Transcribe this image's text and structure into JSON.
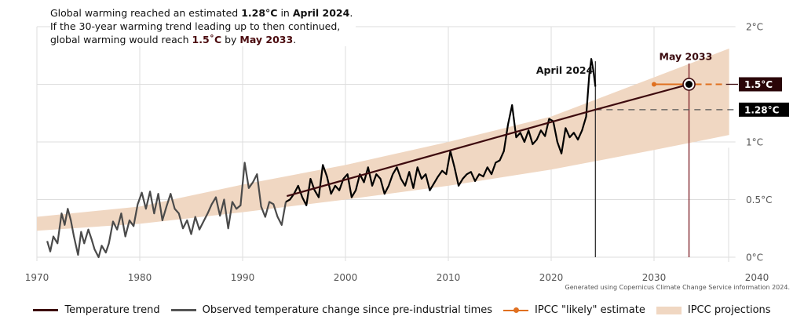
{
  "headline": {
    "line1_pre": "Global warming reached an estimated ",
    "line1_val": "1.28°C",
    "line1_mid": " in ",
    "line1_date": "April 2024",
    "line1_end": ".",
    "line2": "If the 30-year warming trend leading up to then continued,",
    "line3_pre": "global warming would reach ",
    "line3_val": "1.5˚C",
    "line3_mid": " by ",
    "line3_date": "May 2033",
    "line3_end": "."
  },
  "credit": "Generated using Copernicus Climate Change Service information 2024.",
  "colors": {
    "trend": "#3d0a0e",
    "observed_old": "#4a4a4a",
    "observed_recent": "#000000",
    "likely": "#e07020",
    "band": "#f0d7c2",
    "grid": "#dddddd",
    "badge_15": "#2a0508",
    "badge_128": "#000000",
    "target_line": "#7a1a22"
  },
  "chart_data": {
    "type": "line",
    "title": "Global warming reached an estimated 1.28°C in April 2024",
    "xlabel": "",
    "ylabel": "",
    "xlim": [
      1970,
      2040
    ],
    "ylim": [
      0,
      2
    ],
    "x_ticks": [
      {
        "value": 1970,
        "label": "1970"
      },
      {
        "value": 1980,
        "label": "1980"
      },
      {
        "value": 1990,
        "label": "1990"
      },
      {
        "value": 2000,
        "label": "2000"
      },
      {
        "value": 2010,
        "label": "2010"
      },
      {
        "value": 2020,
        "label": "2020"
      },
      {
        "value": 2030,
        "label": "2030"
      },
      {
        "value": 2040,
        "label": "2040"
      }
    ],
    "y_ticks": [
      {
        "value": 0,
        "label": "0°C"
      },
      {
        "value": 0.5,
        "label": "0.5°C"
      },
      {
        "value": 1,
        "label": "1°C"
      },
      {
        "value": 1.5,
        "label": ""
      },
      {
        "value": 2,
        "label": "2°C"
      }
    ],
    "grid": true,
    "legend_position": "bottom",
    "series": [
      {
        "name": "Observed temperature change since pre-industrial times",
        "x": [
          1971.0,
          1971.3,
          1971.6,
          1972.0,
          1972.4,
          1972.7,
          1973.0,
          1973.3,
          1973.6,
          1974.0,
          1974.3,
          1974.6,
          1975.0,
          1975.3,
          1975.6,
          1976.0,
          1976.3,
          1976.7,
          1977.0,
          1977.4,
          1977.8,
          1978.2,
          1978.6,
          1979.0,
          1979.4,
          1979.8,
          1980.2,
          1980.6,
          1981.0,
          1981.4,
          1981.8,
          1982.2,
          1982.6,
          1983.0,
          1983.4,
          1983.8,
          1984.2,
          1984.6,
          1985.0,
          1985.4,
          1985.8,
          1986.2,
          1986.6,
          1987.0,
          1987.4,
          1987.8,
          1988.2,
          1988.6,
          1989.0,
          1989.4,
          1989.8,
          1990.2,
          1990.6,
          1991.0,
          1991.4,
          1991.8,
          1992.2,
          1992.6,
          1993.0,
          1993.4,
          1993.8,
          1994.2,
          1994.6,
          1995.0,
          1995.4,
          1995.8,
          1996.2,
          1996.6,
          1997.0,
          1997.4,
          1997.8,
          1998.2,
          1998.6,
          1999.0,
          1999.4,
          1999.8,
          2000.2,
          2000.6,
          2001.0,
          2001.4,
          2001.8,
          2002.2,
          2002.6,
          2003.0,
          2003.4,
          2003.8,
          2004.2,
          2004.6,
          2005.0,
          2005.4,
          2005.8,
          2006.2,
          2006.6,
          2007.0,
          2007.4,
          2007.8,
          2008.2,
          2008.6,
          2009.0,
          2009.4,
          2009.8,
          2010.2,
          2010.6,
          2011.0,
          2011.4,
          2011.8,
          2012.2,
          2012.6,
          2013.0,
          2013.4,
          2013.8,
          2014.2,
          2014.6,
          2015.0,
          2015.4,
          2015.8,
          2016.2,
          2016.6,
          2017.0,
          2017.4,
          2017.8,
          2018.2,
          2018.6,
          2019.0,
          2019.4,
          2019.8,
          2020.2,
          2020.6,
          2021.0,
          2021.4,
          2021.8,
          2022.2,
          2022.6,
          2023.0,
          2023.4,
          2023.7,
          2023.9,
          2024.1,
          2024.3
        ],
        "y": [
          0.14,
          0.05,
          0.18,
          0.12,
          0.38,
          0.28,
          0.42,
          0.32,
          0.18,
          0.02,
          0.22,
          0.12,
          0.24,
          0.16,
          0.07,
          0.0,
          0.1,
          0.04,
          0.12,
          0.31,
          0.24,
          0.38,
          0.18,
          0.32,
          0.27,
          0.46,
          0.56,
          0.42,
          0.57,
          0.38,
          0.55,
          0.32,
          0.44,
          0.55,
          0.42,
          0.38,
          0.25,
          0.32,
          0.2,
          0.35,
          0.24,
          0.31,
          0.38,
          0.46,
          0.52,
          0.36,
          0.5,
          0.25,
          0.48,
          0.42,
          0.45,
          0.82,
          0.6,
          0.65,
          0.72,
          0.44,
          0.35,
          0.48,
          0.46,
          0.35,
          0.28,
          0.48,
          0.5,
          0.55,
          0.62,
          0.52,
          0.45,
          0.68,
          0.58,
          0.52,
          0.8,
          0.7,
          0.55,
          0.62,
          0.58,
          0.68,
          0.72,
          0.52,
          0.58,
          0.72,
          0.65,
          0.78,
          0.62,
          0.72,
          0.68,
          0.55,
          0.62,
          0.72,
          0.78,
          0.68,
          0.62,
          0.74,
          0.6,
          0.78,
          0.68,
          0.72,
          0.58,
          0.64,
          0.7,
          0.75,
          0.72,
          0.92,
          0.78,
          0.62,
          0.68,
          0.72,
          0.74,
          0.66,
          0.72,
          0.7,
          0.78,
          0.72,
          0.82,
          0.84,
          0.92,
          1.15,
          1.32,
          1.04,
          1.08,
          1.0,
          1.1,
          0.98,
          1.02,
          1.1,
          1.05,
          1.2,
          1.18,
          1.0,
          0.9,
          1.12,
          1.04,
          1.08,
          1.02,
          1.1,
          1.22,
          1.58,
          1.72,
          1.62,
          1.48
        ],
        "split_year": 1994.3
      },
      {
        "name": "Temperature trend",
        "x": [
          1994.3,
          2024.3,
          2033.4
        ],
        "y": [
          0.53,
          1.28,
          1.5
        ]
      },
      {
        "name": "IPCC \"likely\" estimate",
        "x": [
          2030.0,
          2033.4,
          2037.0
        ],
        "y": [
          1.5,
          1.5,
          1.5
        ]
      },
      {
        "name": "IPCC projections",
        "type": "area",
        "x": [
          1970,
          1980,
          1990,
          2000,
          2010,
          2020,
          2030,
          2037.3
        ],
        "y_low": [
          0.23,
          0.29,
          0.39,
          0.5,
          0.62,
          0.76,
          0.93,
          1.06
        ],
        "y_high": [
          0.35,
          0.44,
          0.63,
          0.8,
          1.0,
          1.22,
          1.56,
          1.81
        ]
      }
    ],
    "annotations": [
      {
        "text": "April 2024",
        "x": 2024.3,
        "y": 1.28,
        "vertical_line": true
      },
      {
        "text": "May 2033",
        "x": 2033.4,
        "y": 1.5,
        "vertical_line": true,
        "marker": "target-circle"
      },
      {
        "text": "1.5°C",
        "y": 1.5,
        "badge": true
      },
      {
        "text": "1.28°C",
        "y": 1.28,
        "badge": true,
        "dashed_line_from": 2024.3
      }
    ]
  },
  "legend": [
    {
      "label": "Temperature trend",
      "key": "trend"
    },
    {
      "label": "Observed temperature change since pre-industrial times",
      "key": "observed"
    },
    {
      "label": "IPCC \"likely\" estimate",
      "key": "likely"
    },
    {
      "label": "IPCC projections",
      "key": "band"
    }
  ]
}
